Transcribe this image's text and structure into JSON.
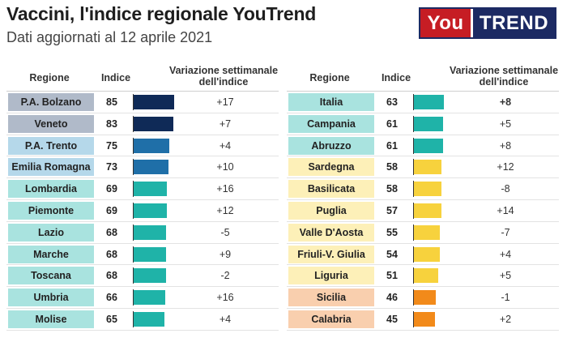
{
  "title": "Vaccini, l'indice regionale YouTrend",
  "subtitle": "Dati aggiornati al 12 aprile 2021",
  "logo": {
    "part1": "You",
    "part2": "TREND"
  },
  "headers": {
    "region": "Regione",
    "index": "Indice",
    "variation": "Variazione settimanale dell'indice"
  },
  "colors": {
    "navy": "#0f2a57",
    "blue": "#1f6fa8",
    "teal": "#1fb3a8",
    "yellow": "#f7d23d",
    "orange": "#f28a1a",
    "label_slate": "#b0bac9",
    "label_lightblue": "#b5d8ea",
    "label_mint": "#a9e3df",
    "label_cream": "#fdf0b8",
    "label_peach": "#f9cfae"
  },
  "chart_data": {
    "type": "table",
    "columns": [
      "Regione",
      "Indice",
      "Variazione settimanale dell'indice"
    ],
    "index_range": [
      0,
      85
    ],
    "left": [
      {
        "region": "P.A. Bolzano",
        "index": 85,
        "variation": "+17",
        "bar_color": "navy",
        "label_color": "label_slate"
      },
      {
        "region": "Veneto",
        "index": 83,
        "variation": "+7",
        "bar_color": "navy",
        "label_color": "label_slate"
      },
      {
        "region": "P.A. Trento",
        "index": 75,
        "variation": "+4",
        "bar_color": "blue",
        "label_color": "label_lightblue"
      },
      {
        "region": "Emilia Romagna",
        "index": 73,
        "variation": "+10",
        "bar_color": "blue",
        "label_color": "label_lightblue"
      },
      {
        "region": "Lombardia",
        "index": 69,
        "variation": "+16",
        "bar_color": "teal",
        "label_color": "label_mint"
      },
      {
        "region": "Piemonte",
        "index": 69,
        "variation": "+12",
        "bar_color": "teal",
        "label_color": "label_mint"
      },
      {
        "region": "Lazio",
        "index": 68,
        "variation": "-5",
        "bar_color": "teal",
        "label_color": "label_mint"
      },
      {
        "region": "Marche",
        "index": 68,
        "variation": "+9",
        "bar_color": "teal",
        "label_color": "label_mint"
      },
      {
        "region": "Toscana",
        "index": 68,
        "variation": "-2",
        "bar_color": "teal",
        "label_color": "label_mint"
      },
      {
        "region": "Umbria",
        "index": 66,
        "variation": "+16",
        "bar_color": "teal",
        "label_color": "label_mint"
      },
      {
        "region": "Molise",
        "index": 65,
        "variation": "+4",
        "bar_color": "teal",
        "label_color": "label_mint"
      }
    ],
    "right": [
      {
        "region": "Italia",
        "index": 63,
        "variation": "+8",
        "bar_color": "teal",
        "label_color": "label_mint",
        "bold": true
      },
      {
        "region": "Campania",
        "index": 61,
        "variation": "+5",
        "bar_color": "teal",
        "label_color": "label_mint"
      },
      {
        "region": "Abruzzo",
        "index": 61,
        "variation": "+8",
        "bar_color": "teal",
        "label_color": "label_mint"
      },
      {
        "region": "Sardegna",
        "index": 58,
        "variation": "+12",
        "bar_color": "yellow",
        "label_color": "label_cream"
      },
      {
        "region": "Basilicata",
        "index": 58,
        "variation": "-8",
        "bar_color": "yellow",
        "label_color": "label_cream"
      },
      {
        "region": "Puglia",
        "index": 57,
        "variation": "+14",
        "bar_color": "yellow",
        "label_color": "label_cream"
      },
      {
        "region": "Valle D'Aosta",
        "index": 55,
        "variation": "-7",
        "bar_color": "yellow",
        "label_color": "label_cream"
      },
      {
        "region": "Friuli-V. Giulia",
        "index": 54,
        "variation": "+4",
        "bar_color": "yellow",
        "label_color": "label_cream"
      },
      {
        "region": "Liguria",
        "index": 51,
        "variation": "+5",
        "bar_color": "yellow",
        "label_color": "label_cream"
      },
      {
        "region": "Sicilia",
        "index": 46,
        "variation": "-1",
        "bar_color": "orange",
        "label_color": "label_peach"
      },
      {
        "region": "Calabria",
        "index": 45,
        "variation": "+2",
        "bar_color": "orange",
        "label_color": "label_peach"
      }
    ]
  }
}
